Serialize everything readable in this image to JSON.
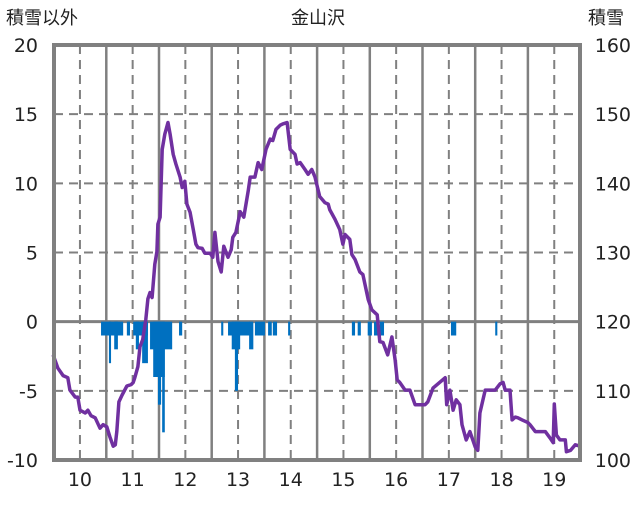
{
  "chart_data": {
    "type": "bar+line",
    "title": "金山沢",
    "ylabel_left": "積雪以外",
    "ylabel_right": "積雪",
    "xlim": [
      9.5,
      19.5
    ],
    "ylim_left": [
      -10,
      20
    ],
    "ylim_right": [
      100,
      160
    ],
    "x_ticks": [
      "10",
      "11",
      "12",
      "13",
      "14",
      "15",
      "16",
      "17",
      "18",
      "19"
    ],
    "y_ticks_left": [
      "20",
      "15",
      "10",
      "5",
      "0",
      "-5",
      "-10"
    ],
    "y_ticks_right": [
      "160",
      "150",
      "140",
      "130",
      "120",
      "110",
      "100"
    ],
    "grid": true,
    "colors": {
      "line": "#7030A0",
      "bars": "#0070C0",
      "grid": "#808080"
    },
    "series": [
      {
        "name": "積雪以外",
        "axis": "left",
        "type": "bar",
        "bars": [
          [
            10.4,
            10.82,
            -1
          ],
          [
            10.55,
            10.59,
            -3
          ],
          [
            10.65,
            10.72,
            -2
          ],
          [
            10.89,
            10.95,
            -1
          ],
          [
            11.01,
            11.29,
            -1
          ],
          [
            11.06,
            11.12,
            -2
          ],
          [
            11.18,
            11.29,
            -3
          ],
          [
            11.33,
            11.75,
            -2
          ],
          [
            11.39,
            11.61,
            -4
          ],
          [
            11.48,
            11.54,
            -6
          ],
          [
            11.56,
            11.61,
            -8
          ],
          [
            11.88,
            11.94,
            -1
          ],
          [
            12.68,
            12.72,
            -1
          ],
          [
            12.81,
            13.23,
            -1
          ],
          [
            12.88,
            13.04,
            -2
          ],
          [
            12.94,
            13.0,
            -5
          ],
          [
            13.21,
            13.29,
            -2
          ],
          [
            13.32,
            13.51,
            -1
          ],
          [
            13.57,
            13.64,
            -1
          ],
          [
            13.66,
            13.74,
            -1
          ],
          [
            13.95,
            13.99,
            -1
          ],
          [
            15.16,
            15.22,
            -1
          ],
          [
            15.27,
            15.33,
            -1
          ],
          [
            15.46,
            15.54,
            -1
          ],
          [
            15.58,
            15.66,
            -1
          ],
          [
            15.69,
            15.77,
            -1
          ],
          [
            17.04,
            17.14,
            -1
          ],
          [
            17.88,
            17.92,
            -1
          ]
        ]
      },
      {
        "name": "積雪",
        "axis": "right",
        "type": "line",
        "points": [
          [
            9.49,
            115.2
          ],
          [
            9.58,
            113.3
          ],
          [
            9.68,
            112.2
          ],
          [
            9.77,
            111.9
          ],
          [
            9.81,
            110.1
          ],
          [
            9.91,
            109.1
          ],
          [
            9.96,
            109.1
          ],
          [
            10.0,
            107.2
          ],
          [
            10.1,
            106.8
          ],
          [
            10.15,
            107.2
          ],
          [
            10.21,
            106.4
          ],
          [
            10.29,
            106.1
          ],
          [
            10.38,
            104.6
          ],
          [
            10.44,
            105.1
          ],
          [
            10.51,
            104.8
          ],
          [
            10.57,
            103.3
          ],
          [
            10.63,
            102.0
          ],
          [
            10.67,
            102.2
          ],
          [
            10.7,
            104.1
          ],
          [
            10.74,
            108.4
          ],
          [
            10.8,
            109.4
          ],
          [
            10.89,
            110.7
          ],
          [
            10.97,
            110.9
          ],
          [
            11.01,
            111.2
          ],
          [
            11.04,
            111.9
          ],
          [
            11.1,
            113.5
          ],
          [
            11.14,
            116.4
          ],
          [
            11.19,
            117.4
          ],
          [
            11.25,
            120.3
          ],
          [
            11.29,
            123.3
          ],
          [
            11.33,
            124.2
          ],
          [
            11.37,
            123.5
          ],
          [
            11.42,
            128.3
          ],
          [
            11.46,
            130.1
          ],
          [
            11.48,
            134.1
          ],
          [
            11.52,
            135.1
          ],
          [
            11.56,
            144.9
          ],
          [
            11.61,
            147.1
          ],
          [
            11.67,
            148.8
          ],
          [
            11.71,
            147.1
          ],
          [
            11.77,
            144.2
          ],
          [
            11.82,
            142.8
          ],
          [
            11.9,
            140.9
          ],
          [
            11.94,
            139.4
          ],
          [
            11.99,
            140.3
          ],
          [
            12.03,
            137.0
          ],
          [
            12.09,
            135.8
          ],
          [
            12.15,
            133.3
          ],
          [
            12.2,
            131.2
          ],
          [
            12.24,
            130.7
          ],
          [
            12.32,
            130.6
          ],
          [
            12.37,
            129.9
          ],
          [
            12.47,
            129.9
          ],
          [
            12.52,
            129.3
          ],
          [
            12.56,
            132.9
          ],
          [
            12.62,
            128.7
          ],
          [
            12.68,
            127.2
          ],
          [
            12.73,
            130.9
          ],
          [
            12.81,
            129.3
          ],
          [
            12.87,
            130.4
          ],
          [
            12.9,
            132.2
          ],
          [
            12.96,
            132.9
          ],
          [
            13.04,
            135.9
          ],
          [
            13.11,
            135.1
          ],
          [
            13.19,
            138.8
          ],
          [
            13.23,
            140.9
          ],
          [
            13.32,
            140.9
          ],
          [
            13.38,
            143.0
          ],
          [
            13.45,
            142.0
          ],
          [
            13.53,
            144.9
          ],
          [
            13.61,
            146.4
          ],
          [
            13.66,
            146.2
          ],
          [
            13.72,
            147.8
          ],
          [
            13.8,
            148.4
          ],
          [
            13.85,
            148.6
          ],
          [
            13.93,
            148.8
          ],
          [
            13.99,
            144.9
          ],
          [
            14.08,
            144.2
          ],
          [
            14.12,
            142.8
          ],
          [
            14.18,
            143.0
          ],
          [
            14.27,
            142.0
          ],
          [
            14.33,
            141.3
          ],
          [
            14.4,
            142.0
          ],
          [
            14.46,
            140.9
          ],
          [
            14.55,
            138.1
          ],
          [
            14.65,
            137.2
          ],
          [
            14.71,
            137.0
          ],
          [
            14.74,
            136.2
          ],
          [
            14.84,
            134.8
          ],
          [
            14.93,
            133.3
          ],
          [
            14.99,
            131.2
          ],
          [
            15.03,
            132.6
          ],
          [
            15.12,
            131.9
          ],
          [
            15.16,
            129.7
          ],
          [
            15.22,
            129.0
          ],
          [
            15.31,
            127.2
          ],
          [
            15.37,
            126.8
          ],
          [
            15.47,
            123.2
          ],
          [
            15.54,
            121.7
          ],
          [
            15.64,
            121.0
          ],
          [
            15.69,
            117.1
          ],
          [
            15.75,
            117.0
          ],
          [
            15.84,
            115.2
          ],
          [
            15.92,
            117.8
          ],
          [
            15.98,
            114.5
          ],
          [
            16.02,
            111.6
          ],
          [
            16.07,
            111.2
          ],
          [
            16.17,
            110.1
          ],
          [
            16.26,
            110.1
          ],
          [
            16.36,
            108.0
          ],
          [
            16.55,
            108.0
          ],
          [
            16.6,
            108.4
          ],
          [
            16.7,
            110.4
          ],
          [
            16.93,
            111.9
          ],
          [
            16.96,
            108.0
          ],
          [
            17.02,
            110.1
          ],
          [
            17.08,
            107.2
          ],
          [
            17.14,
            108.7
          ],
          [
            17.21,
            108.0
          ],
          [
            17.25,
            105.1
          ],
          [
            17.33,
            102.9
          ],
          [
            17.4,
            104.1
          ],
          [
            17.5,
            101.9
          ],
          [
            17.55,
            101.4
          ],
          [
            17.59,
            106.8
          ],
          [
            17.69,
            110.1
          ],
          [
            17.88,
            110.1
          ],
          [
            17.97,
            111.0
          ],
          [
            18.03,
            111.2
          ],
          [
            18.07,
            110.1
          ],
          [
            18.16,
            110.1
          ],
          [
            18.2,
            105.8
          ],
          [
            18.26,
            106.2
          ],
          [
            18.31,
            106.1
          ],
          [
            18.39,
            105.8
          ],
          [
            18.5,
            105.4
          ],
          [
            18.54,
            105.1
          ],
          [
            18.64,
            104.1
          ],
          [
            18.83,
            104.1
          ],
          [
            18.92,
            103.2
          ],
          [
            18.98,
            102.5
          ],
          [
            19.0,
            108.1
          ],
          [
            19.04,
            103.6
          ],
          [
            19.11,
            102.9
          ],
          [
            19.21,
            102.9
          ],
          [
            19.23,
            101.2
          ],
          [
            19.31,
            101.4
          ],
          [
            19.4,
            102.2
          ],
          [
            19.49,
            102.0
          ]
        ]
      }
    ]
  }
}
